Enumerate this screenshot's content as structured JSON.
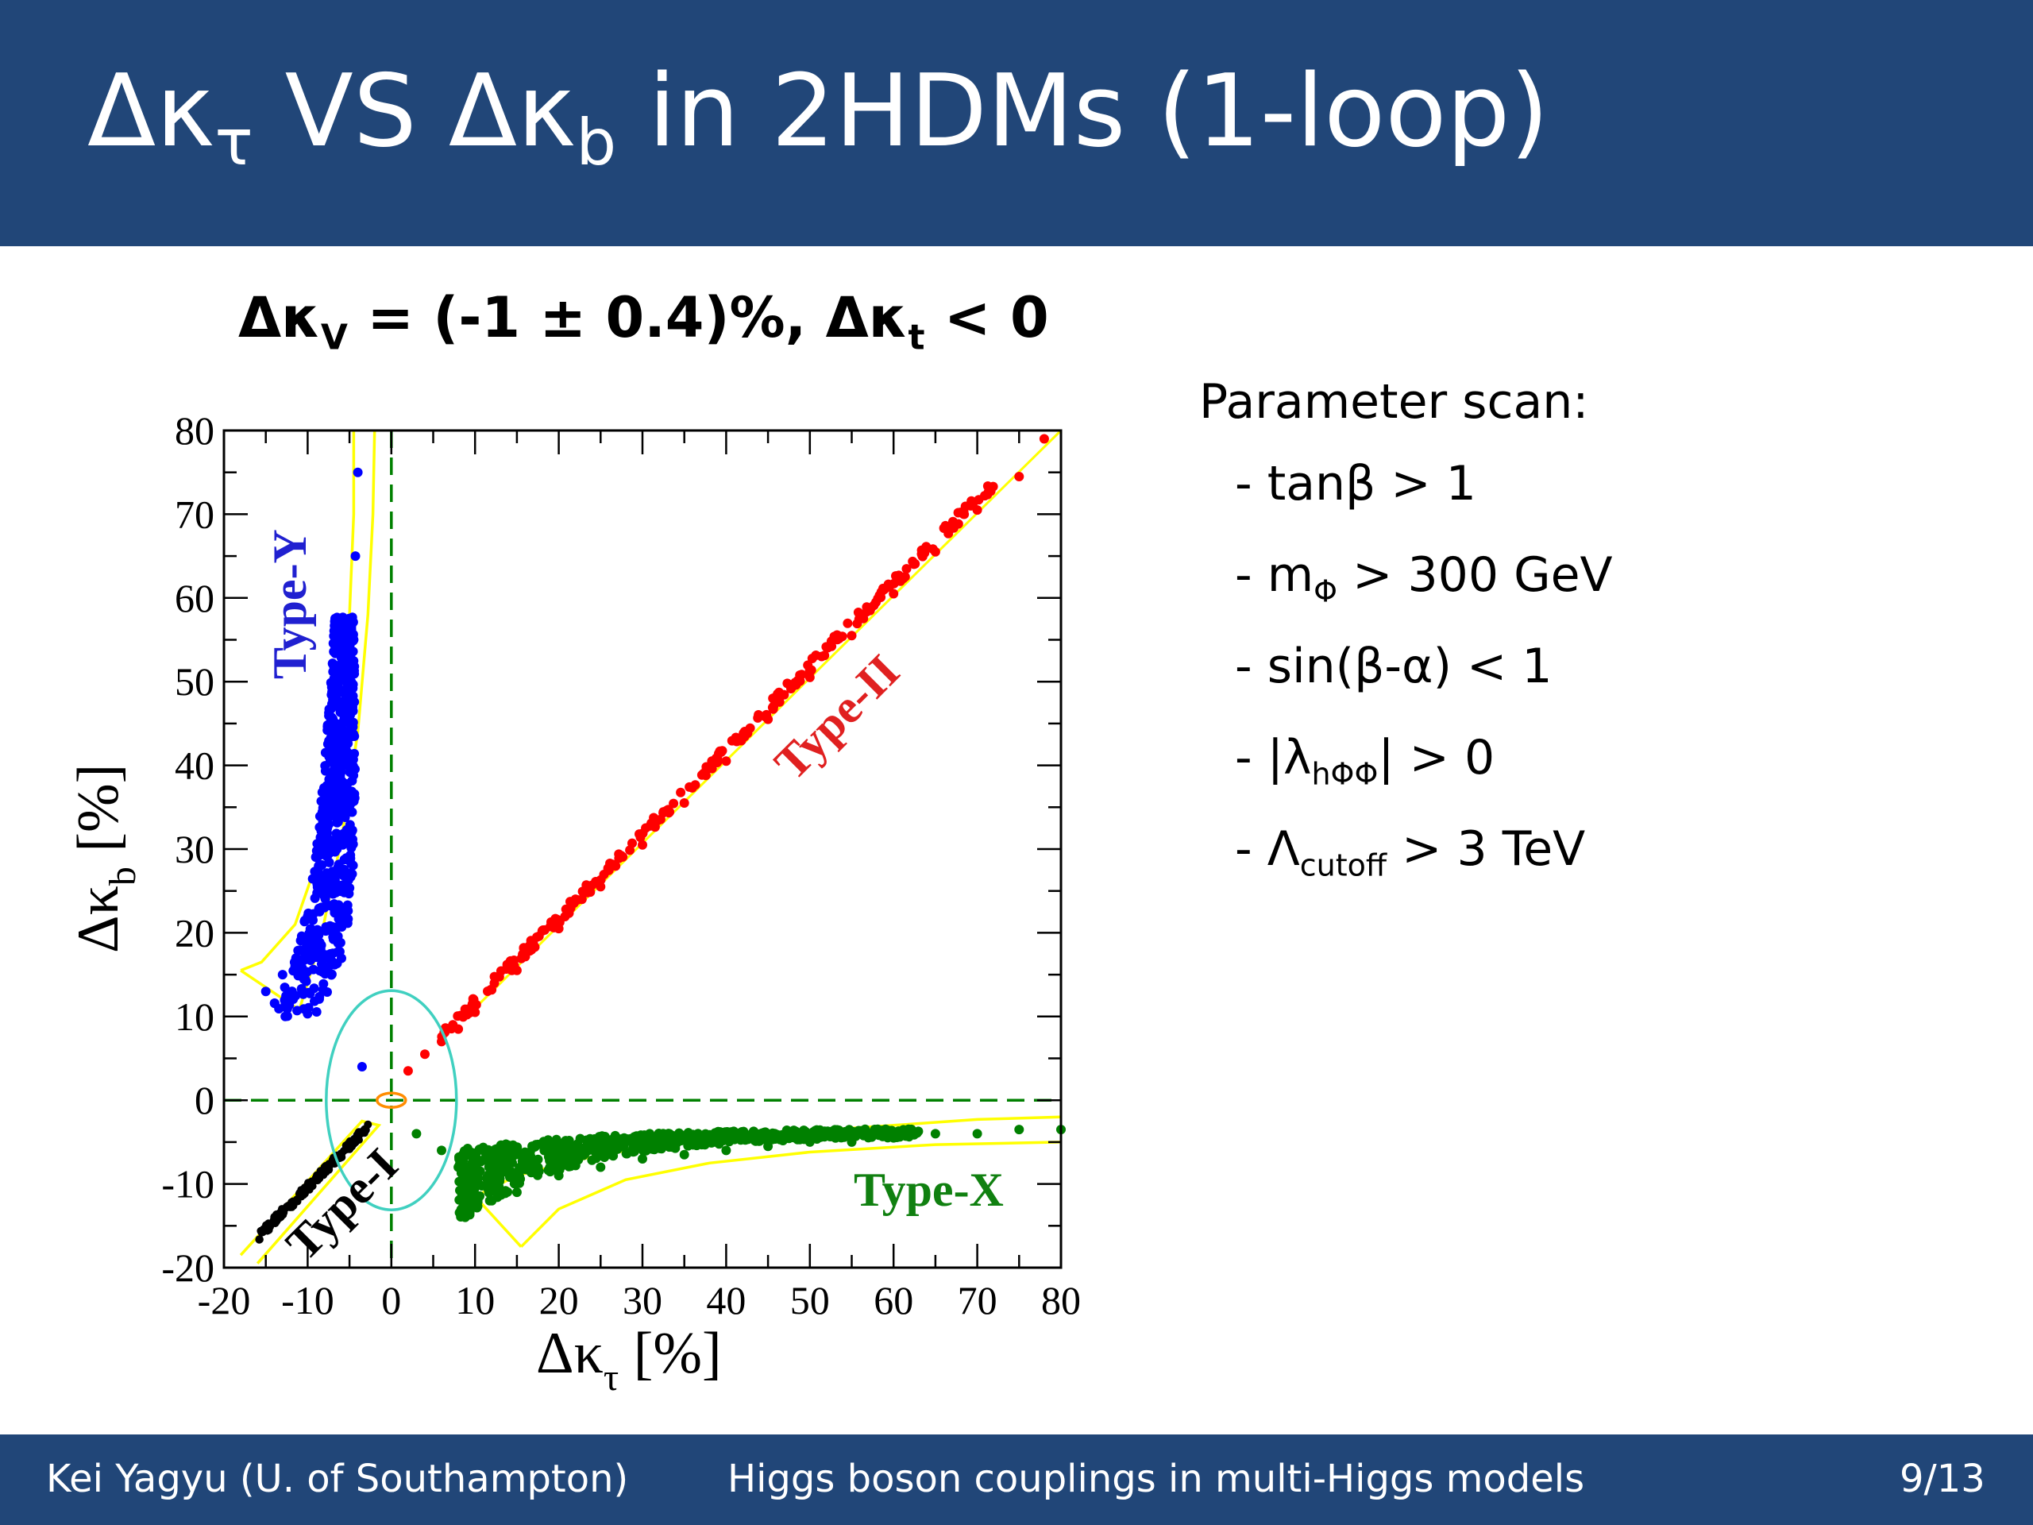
{
  "slide": {
    "title": {
      "main1": "Δκ",
      "sub1": "τ",
      "main2": " VS Δκ",
      "sub2": "b",
      "main3": " in 2HDMs (1-loop)"
    },
    "plot_title": {
      "p1": "Δκ",
      "s1": "V",
      "p2": " = (-1 ± 0.4)%, Δκ",
      "s2": "t",
      "p3": " < 0"
    },
    "scan": {
      "heading": "Parameter scan:",
      "items": [
        {
          "pre": "- tanβ > 1",
          "sub": "",
          "post": ""
        },
        {
          "pre": "- m",
          "sub": "Φ",
          "post": " > 300 GeV"
        },
        {
          "pre": "- sin(β-α) < 1",
          "sub": "",
          "post": ""
        },
        {
          "pre": "- |λ",
          "sub": "hΦΦ",
          "post": "| > 0"
        },
        {
          "pre": "- Λ",
          "sub": "cutoff",
          "post": " > 3 TeV"
        }
      ]
    },
    "footer": {
      "author": "Kei Yagyu (U. of Southampton)",
      "talk_title": "Higgs boson couplings in multi-Higgs models",
      "page": "9/13"
    }
  },
  "chart_data": {
    "type": "scatter",
    "xlabel": {
      "main": "Δκ",
      "sub": "τ",
      "unit": " [%]"
    },
    "ylabel": {
      "main": "Δκ",
      "sub": "b",
      "unit": " [%]"
    },
    "xlim": [
      -20,
      80
    ],
    "ylim": [
      -20,
      80
    ],
    "xticks": [
      "-20",
      "-10",
      "0",
      "10",
      "20",
      "30",
      "40",
      "50",
      "60",
      "70",
      "80"
    ],
    "yticks": [
      "-20",
      "-10",
      "0",
      "10",
      "20",
      "30",
      "40",
      "50",
      "60",
      "70",
      "80"
    ],
    "series": [
      {
        "name": "Type-I",
        "color": "#000000",
        "x": [
          -15.5,
          -14,
          -12.5,
          -11,
          -9.5,
          -8,
          -6.5,
          -5,
          -3.8,
          -2.8
        ],
        "y": [
          -15.8,
          -14.3,
          -12.7,
          -11.2,
          -9.7,
          -8.1,
          -6.6,
          -5.1,
          -3.9,
          -2.9
        ]
      },
      {
        "name": "Type-II",
        "color": "#ff0000",
        "x": [
          2,
          4,
          6,
          8,
          10,
          15,
          20,
          25,
          30,
          35,
          40,
          45,
          50,
          55,
          60,
          65,
          70,
          75,
          78
        ],
        "y": [
          3.5,
          5.5,
          7,
          8.5,
          10.5,
          15.5,
          20.5,
          25.5,
          30.5,
          35.5,
          40.5,
          45.5,
          50.5,
          55.5,
          60.5,
          65.5,
          70.5,
          74.5,
          79
        ]
      },
      {
        "name": "Type-Y",
        "color": "#0000ff",
        "x": [
          -15,
          -13,
          -11.5,
          -10,
          -9,
          -8,
          -7,
          -6.5,
          -6,
          -5.5,
          -5,
          -4.8,
          -4.5,
          -4.3,
          -4,
          -3.5
        ],
        "y": [
          13,
          15,
          16,
          18,
          20,
          23,
          26,
          30,
          35,
          40,
          45,
          50,
          55,
          65,
          75,
          4
        ]
      },
      {
        "name": "Type-X",
        "color": "#008000",
        "x": [
          3,
          6,
          8,
          9,
          10,
          12,
          15,
          20,
          25,
          30,
          35,
          40,
          45,
          50,
          55,
          60,
          65,
          70,
          75,
          80
        ],
        "y": [
          -4,
          -6,
          -8,
          -10,
          -12,
          -12,
          -11,
          -9,
          -8,
          -7,
          -6.5,
          -6,
          -5.5,
          -5,
          -5,
          -4.5,
          -4,
          -4,
          -3.5,
          -3.5
        ]
      }
    ],
    "grid": false,
    "colors": {
      "yellow_region": "#ffff00",
      "ellipse_cyan": "#40d0c0",
      "ellipse_orange": "#ff8c00",
      "zero_lines": "#008000"
    }
  }
}
